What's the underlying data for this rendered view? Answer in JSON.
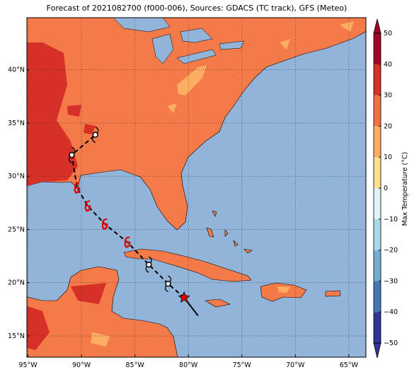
{
  "chart_data": {
    "type": "map",
    "title": "Forecast of 2021082700 (f000-006), Sources: GDACS (TC track), GFS (Meteo)",
    "xlim": [
      -95.1,
      -63.4
    ],
    "ylim": [
      13.0,
      44.9
    ],
    "xticks": [
      {
        "value": -95,
        "label": "95°W"
      },
      {
        "value": -90,
        "label": "90°W"
      },
      {
        "value": -85,
        "label": "85°W"
      },
      {
        "value": -80,
        "label": "80°W"
      },
      {
        "value": -75,
        "label": "75°W"
      },
      {
        "value": -70,
        "label": "70°W"
      },
      {
        "value": -65,
        "label": "65°W"
      }
    ],
    "yticks": [
      {
        "value": 15,
        "label": "15°N"
      },
      {
        "value": 20,
        "label": "20°N"
      },
      {
        "value": 25,
        "label": "25°N"
      },
      {
        "value": 30,
        "label": "30°N"
      },
      {
        "value": 35,
        "label": "35°N"
      },
      {
        "value": 40,
        "label": "40°N"
      }
    ],
    "grid": true,
    "colorbar_label": "Max Temperature (°C)",
    "colorbar_lim": [
      -50,
      50
    ],
    "colorbar_ticks": [
      {
        "value": -50,
        "label": "−50"
      },
      {
        "value": -40,
        "label": "−40"
      },
      {
        "value": -30,
        "label": "−30"
      },
      {
        "value": -20,
        "label": "−20"
      },
      {
        "value": -10,
        "label": "−10"
      },
      0,
      10,
      20,
      30,
      40,
      50
    ],
    "colorbar_colors": [
      "#313695",
      "#4575b4",
      "#74add1",
      "#abd9e9",
      "#e0f3f8",
      "#fee090",
      "#fdae61",
      "#f46d43",
      "#d73027",
      "#a50026"
    ],
    "past_track": {
      "lon": [
        -79.1,
        -80.4
      ],
      "lat": [
        16.9,
        18.6
      ]
    },
    "forecast_track": {
      "lon": [
        -80.4,
        -81.9,
        -83.7,
        -85.7,
        -87.8,
        -89.4,
        -90.4,
        -90.9,
        -88.7
      ],
      "lat": [
        18.6,
        19.9,
        21.7,
        23.8,
        25.5,
        27.2,
        28.9,
        32.0,
        33.9
      ],
      "symbols": [
        "star",
        "circle",
        "circle",
        "storm",
        "storm",
        "storm",
        "storm",
        "circle",
        "circle"
      ]
    }
  }
}
